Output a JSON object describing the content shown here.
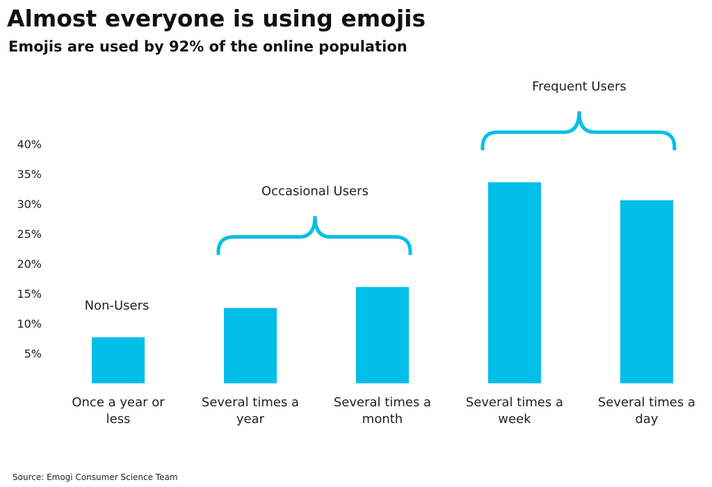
{
  "chart_data": {
    "type": "bar",
    "title": "Almost everyone is using emojis",
    "subtitle": "Emojis are used by 92% of the online population",
    "categories": [
      [
        "Once a year or",
        "less"
      ],
      [
        "Several times a",
        "year"
      ],
      [
        "Several times a",
        "month"
      ],
      [
        "Several times a",
        "week"
      ],
      [
        "Several times a",
        "day"
      ]
    ],
    "values": [
      7.7,
      12.6,
      16.1,
      33.6,
      30.6
    ],
    "ylabel": "",
    "xlabel": "",
    "ylim": [
      0,
      40
    ],
    "yticks": [
      5,
      10,
      15,
      20,
      25,
      30,
      35,
      40
    ],
    "ytick_labels": [
      "5%",
      "10%",
      "15%",
      "20%",
      "25%",
      "30%",
      "35%",
      "40%"
    ],
    "grid": false,
    "groups": [
      {
        "label": "Non-Users",
        "from": 0,
        "to": 0,
        "brace": false
      },
      {
        "label": "Occasional Users",
        "from": 1,
        "to": 2,
        "brace": true
      },
      {
        "label": "Frequent Users",
        "from": 3,
        "to": 4,
        "brace": true
      }
    ],
    "bar_color": "#00BEE8",
    "source": "Source: Emogi Consumer Science Team"
  }
}
